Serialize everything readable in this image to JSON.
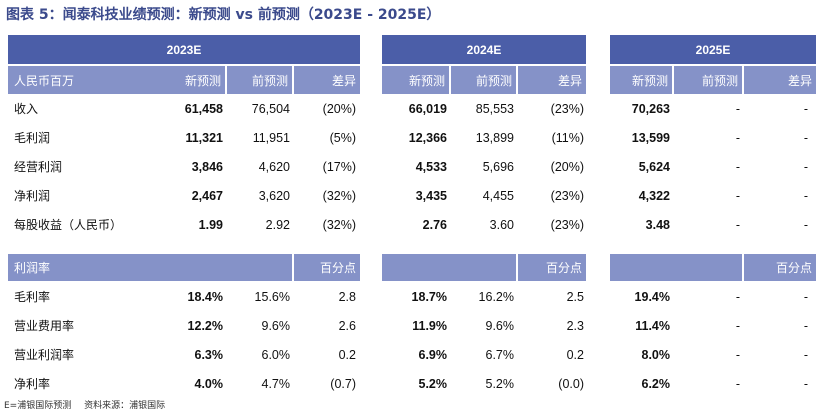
{
  "title": "图表 5：闻泰科技业绩预测：新预测 vs 前预测（2023E - 2025E）",
  "years": [
    "2023E",
    "2024E",
    "2025E"
  ],
  "table_header": {
    "row_label": "人民币百万",
    "columns": [
      "新预测",
      "前预测",
      "差异"
    ]
  },
  "financials": [
    {
      "label": "收入",
      "cells": [
        "61,458",
        "76,504",
        "(20%)",
        "66,019",
        "85,553",
        "(23%)",
        "70,263",
        "-",
        "-"
      ]
    },
    {
      "label": "毛利润",
      "cells": [
        "11,321",
        "11,951",
        "(5%)",
        "12,366",
        "13,899",
        "(11%)",
        "13,599",
        "-",
        "-"
      ]
    },
    {
      "label": "经营利润",
      "cells": [
        "3,846",
        "4,620",
        "(17%)",
        "4,533",
        "5,696",
        "(20%)",
        "5,624",
        "-",
        "-"
      ]
    },
    {
      "label": "净利润",
      "cells": [
        "2,467",
        "3,620",
        "(32%)",
        "3,435",
        "4,455",
        "(23%)",
        "4,322",
        "-",
        "-"
      ]
    },
    {
      "label": "每股收益（人民币）",
      "cells": [
        "1.99",
        "2.92",
        "(32%)",
        "2.76",
        "3.60",
        "(23%)",
        "3.48",
        "-",
        "-"
      ]
    }
  ],
  "margin_header": {
    "label": "利润率",
    "unit": "百分点"
  },
  "margins": [
    {
      "label": "毛利率",
      "cells": [
        "18.4%",
        "15.6%",
        "2.8",
        "18.7%",
        "16.2%",
        "2.5",
        "19.4%",
        "-",
        "-"
      ]
    },
    {
      "label": "营业费用率",
      "cells": [
        "12.2%",
        "9.6%",
        "2.6",
        "11.9%",
        "9.6%",
        "2.3",
        "11.4%",
        "-",
        "-"
      ]
    },
    {
      "label": "营业利润率",
      "cells": [
        "6.3%",
        "6.0%",
        "0.2",
        "6.9%",
        "6.7%",
        "0.2",
        "8.0%",
        "-",
        "-"
      ]
    },
    {
      "label": "净利率",
      "cells": [
        "4.0%",
        "4.7%",
        "(0.7)",
        "5.2%",
        "5.2%",
        "(0.0)",
        "6.2%",
        "-",
        "-"
      ]
    }
  ],
  "footer": [
    "E=浦银国际预测",
    "资料来源：浦银国际"
  ]
}
